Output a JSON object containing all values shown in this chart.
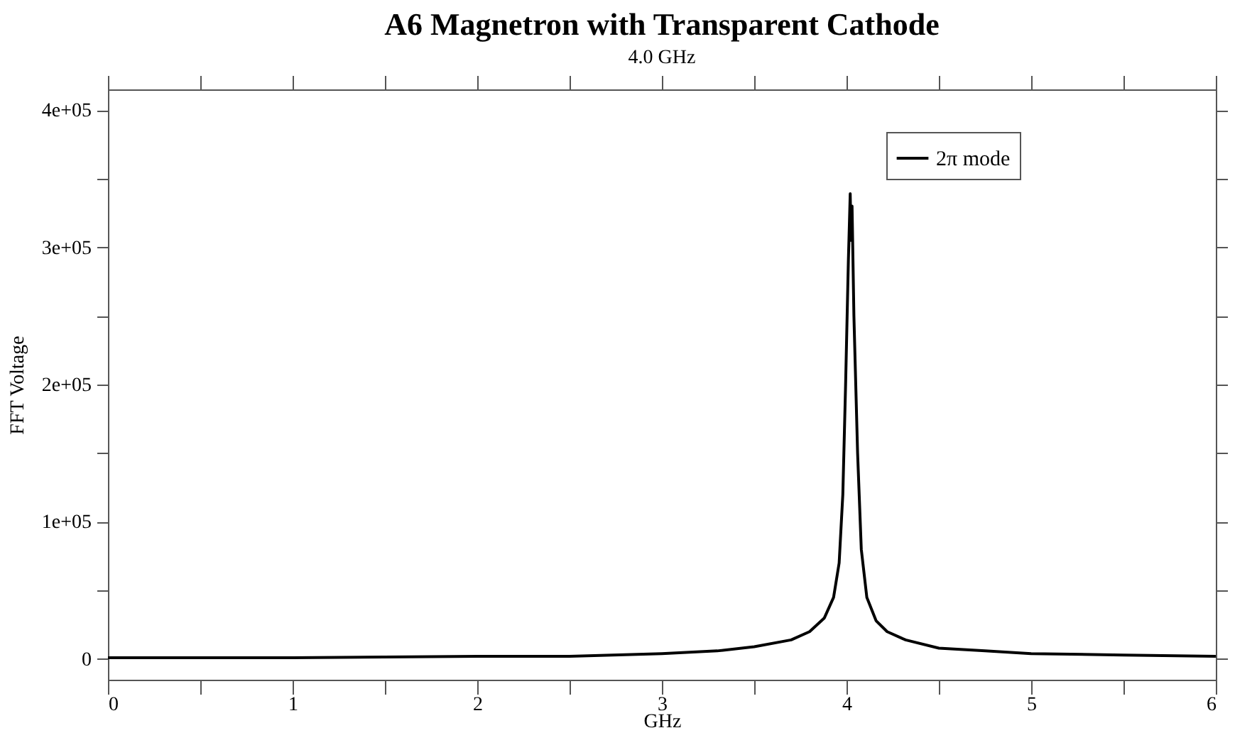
{
  "chart_data": {
    "type": "line",
    "title": "A6 Magnetron with Transparent Cathode",
    "subtitle": "4.0 GHz",
    "xlabel": "GHz",
    "ylabel": "FFT Voltage",
    "xlim": [
      0,
      6
    ],
    "ylim": [
      -15000,
      415000
    ],
    "xticks": [
      0,
      {
        "value": 0.5,
        "label": null
      },
      1,
      {
        "value": 1.5,
        "label": null
      },
      2,
      {
        "value": 2.5,
        "label": null
      },
      3,
      {
        "value": 3.5,
        "label": null
      },
      4,
      {
        "value": 4.5,
        "label": null
      },
      5,
      {
        "value": 5.5,
        "label": null
      },
      6
    ],
    "yticks": [
      0,
      {
        "value": 50000,
        "label": null
      },
      {
        "value": 100000,
        "label": "1e+05"
      },
      {
        "value": 150000,
        "label": null
      },
      {
        "value": 200000,
        "label": "2e+05"
      },
      {
        "value": 250000,
        "label": null
      },
      {
        "value": 300000,
        "label": "3e+05"
      },
      {
        "value": 350000,
        "label": null
      },
      {
        "value": 400000,
        "label": "4e+05"
      }
    ],
    "grid": false,
    "legend": "top right",
    "line_style": "solid",
    "marker": "none",
    "series": [
      {
        "name": "2π mode",
        "color": "#000000",
        "x": [
          0,
          1,
          2,
          2.5,
          3,
          3.3,
          3.5,
          3.7,
          3.8,
          3.88,
          3.93,
          3.96,
          3.98,
          3.995,
          4.01,
          4.02,
          4.025,
          4.03,
          4.04,
          4.06,
          4.08,
          4.11,
          4.16,
          4.22,
          4.32,
          4.5,
          4.75,
          5,
          5.5,
          6
        ],
        "values": [
          1000,
          1000,
          2000,
          2000,
          4000,
          6000,
          9000,
          14000,
          20000,
          30000,
          45000,
          70000,
          120000,
          200000,
          290000,
          339000,
          305000,
          330000,
          250000,
          150000,
          80000,
          45000,
          28000,
          20000,
          14000,
          8000,
          6000,
          4000,
          3000,
          2000
        ]
      }
    ]
  }
}
